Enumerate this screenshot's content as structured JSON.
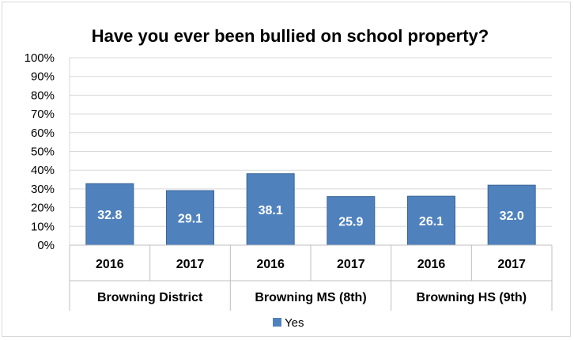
{
  "chart_data": {
    "type": "bar",
    "title": "Have you ever been bullied on school property?",
    "xlabel": "",
    "ylabel": "",
    "ylim": [
      0,
      100
    ],
    "ytick_labels": [
      "0%",
      "10%",
      "20%",
      "30%",
      "40%",
      "50%",
      "60%",
      "70%",
      "80%",
      "90%",
      "100%"
    ],
    "groups": [
      {
        "label": "Browning District",
        "categories": [
          "2016",
          "2017"
        ]
      },
      {
        "label": "Browning MS (8th)",
        "categories": [
          "2016",
          "2017"
        ]
      },
      {
        "label": "Browning HS (9th)",
        "categories": [
          "2016",
          "2017"
        ]
      }
    ],
    "categories": [
      "2016",
      "2017",
      "2016",
      "2017",
      "2016",
      "2017"
    ],
    "series": [
      {
        "name": "Yes",
        "color": "#4f81bd",
        "values": [
          32.8,
          29.1,
          38.1,
          25.9,
          26.1,
          32.0
        ],
        "labels": [
          "32.8",
          "29.1",
          "38.1",
          "25.9",
          "26.1",
          "32.0"
        ]
      }
    ],
    "grid": true,
    "legend_position": "bottom"
  }
}
